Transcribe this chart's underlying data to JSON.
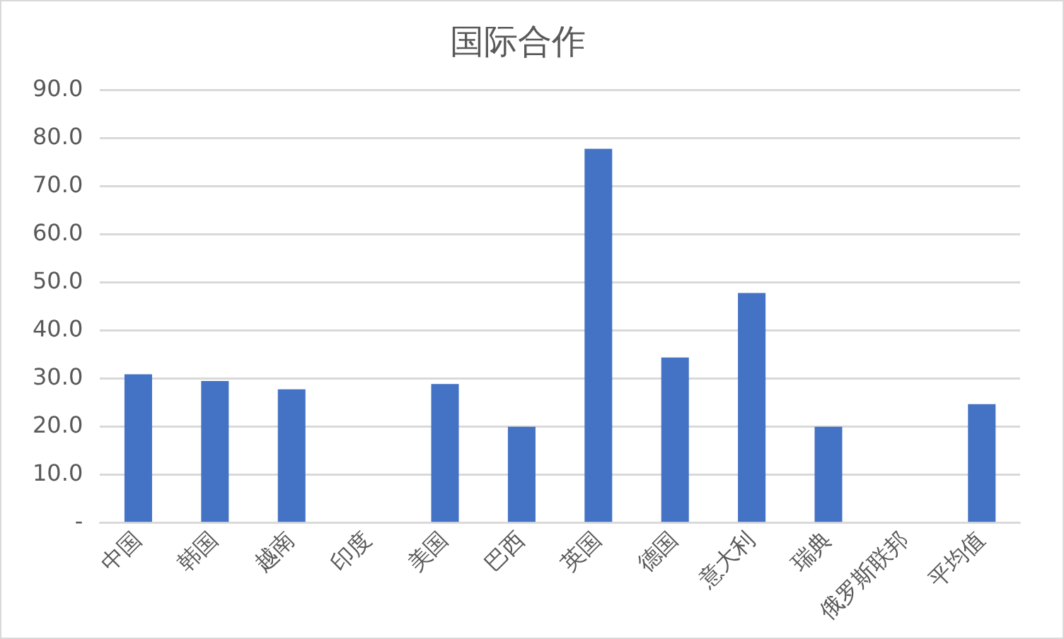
{
  "chart_data": {
    "type": "bar",
    "title": "国际合作",
    "categories": [
      "中国",
      "韩国",
      "越南",
      "印度",
      "美国",
      "巴西",
      "英国",
      "德国",
      "意大利",
      "瑞典",
      "俄罗斯联邦",
      "平均值"
    ],
    "values": [
      30.9,
      29.5,
      27.8,
      0,
      28.9,
      20,
      77.8,
      34.4,
      47.8,
      20,
      0,
      24.7
    ],
    "color": "#4472c4",
    "ylim": [
      0,
      90
    ],
    "yticks": [
      {
        "value": 0,
        "label": "-"
      },
      {
        "value": 10,
        "label": "10.0"
      },
      {
        "value": 20,
        "label": "20.0"
      },
      {
        "value": 30,
        "label": "30.0"
      },
      {
        "value": 40,
        "label": "40.0"
      },
      {
        "value": 50,
        "label": "50.0"
      },
      {
        "value": 60,
        "label": "60.0"
      },
      {
        "value": 70,
        "label": "70.0"
      },
      {
        "value": 80,
        "label": "80.0"
      },
      {
        "value": 90,
        "label": "90.0"
      }
    ],
    "grid": "y",
    "legend": false
  }
}
